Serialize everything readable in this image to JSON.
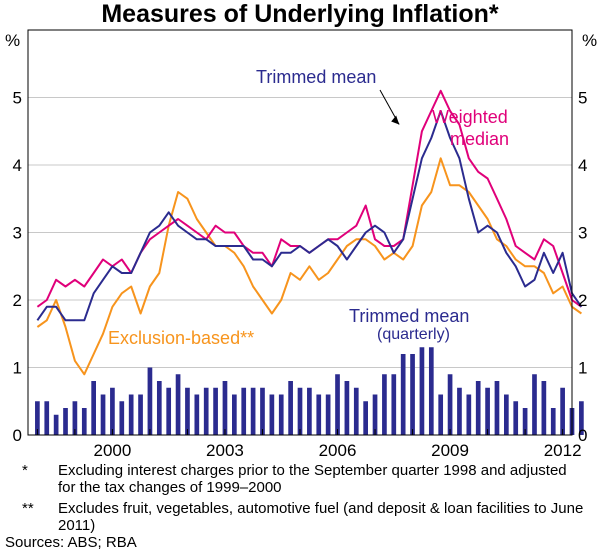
{
  "chart_data": {
    "type": "line",
    "title": "Measures of Underlying Inflation*",
    "ylabel_left": "%",
    "ylabel_right": "%",
    "ylim": [
      0,
      6
    ],
    "yticks": [
      "0",
      "1",
      "2",
      "3",
      "4",
      "5"
    ],
    "xlim": [
      1997.75,
      2012.25
    ],
    "xticks": [
      "2000",
      "2003",
      "2006",
      "2009",
      "2012"
    ],
    "xtick_values": [
      2000,
      2003,
      2006,
      2009,
      2012
    ],
    "x_start": 1998.0,
    "x_step": 0.25,
    "series": [
      {
        "name": "Weighted median",
        "label": "Weighted",
        "label2": "median",
        "color": "#e0007a",
        "values": [
          1.9,
          2.0,
          2.3,
          2.2,
          2.3,
          2.2,
          2.4,
          2.6,
          2.5,
          2.6,
          2.4,
          2.7,
          2.9,
          3.0,
          3.1,
          3.2,
          3.1,
          3.0,
          2.9,
          3.1,
          3.0,
          3.0,
          2.8,
          2.7,
          2.7,
          2.5,
          2.9,
          2.8,
          2.8,
          2.7,
          2.8,
          2.9,
          2.9,
          3.0,
          3.1,
          3.4,
          2.9,
          2.8,
          2.8,
          2.9,
          3.7,
          4.5,
          4.8,
          5.1,
          4.8,
          4.6,
          4.1,
          3.9,
          3.8,
          3.5,
          3.2,
          2.8,
          2.7,
          2.6,
          2.9,
          2.8,
          2.4,
          2.0,
          1.9
        ]
      },
      {
        "name": "Trimmed mean",
        "label": "Trimmed mean",
        "color": "#2b2b8f",
        "values": [
          1.7,
          1.9,
          1.9,
          1.7,
          1.7,
          1.7,
          2.1,
          2.3,
          2.5,
          2.4,
          2.4,
          2.7,
          3.0,
          3.1,
          3.3,
          3.1,
          3.0,
          2.9,
          2.9,
          2.8,
          2.8,
          2.8,
          2.8,
          2.6,
          2.6,
          2.5,
          2.7,
          2.7,
          2.8,
          2.7,
          2.8,
          2.9,
          2.8,
          2.6,
          2.8,
          3.0,
          3.1,
          3.0,
          2.7,
          2.9,
          3.5,
          4.1,
          4.4,
          4.8,
          4.4,
          4.1,
          3.5,
          3.0,
          3.1,
          3.0,
          2.7,
          2.5,
          2.2,
          2.3,
          2.7,
          2.4,
          2.7,
          2.1,
          1.9
        ]
      },
      {
        "name": "Exclusion-based**",
        "label": "Exclusion-based**",
        "color": "#f7941d",
        "values": [
          1.6,
          1.7,
          2.0,
          1.6,
          1.1,
          0.9,
          1.2,
          1.5,
          1.9,
          2.1,
          2.2,
          1.8,
          2.2,
          2.4,
          3.1,
          3.6,
          3.5,
          3.2,
          3.0,
          2.8,
          2.8,
          2.7,
          2.5,
          2.2,
          2.0,
          1.8,
          2.0,
          2.4,
          2.3,
          2.5,
          2.3,
          2.4,
          2.6,
          2.8,
          2.9,
          2.9,
          2.8,
          2.6,
          2.7,
          2.6,
          2.8,
          3.4,
          3.6,
          4.1,
          3.7,
          3.7,
          3.6,
          3.4,
          3.2,
          2.9,
          2.8,
          2.6,
          2.5,
          2.5,
          2.4,
          2.1,
          2.2,
          1.9,
          1.8
        ]
      }
    ],
    "bars": {
      "name": "Trimmed mean (quarterly)",
      "label": "Trimmed mean",
      "label2": "(quarterly)",
      "color": "#2b2b8f",
      "values": [
        0.5,
        0.5,
        0.3,
        0.4,
        0.5,
        0.4,
        0.8,
        0.6,
        0.7,
        0.5,
        0.6,
        0.6,
        1.0,
        0.8,
        0.7,
        0.9,
        0.7,
        0.6,
        0.7,
        0.7,
        0.8,
        0.6,
        0.7,
        0.7,
        0.7,
        0.6,
        0.6,
        0.8,
        0.7,
        0.7,
        0.6,
        0.6,
        0.9,
        0.8,
        0.7,
        0.5,
        0.6,
        0.9,
        0.9,
        1.2,
        1.2,
        1.3,
        1.3,
        0.6,
        0.9,
        0.7,
        0.6,
        0.8,
        0.7,
        0.8,
        0.6,
        0.5,
        0.4,
        0.9,
        0.8,
        0.4,
        0.7,
        0.4,
        0.5
      ]
    }
  },
  "notes": [
    {
      "mark": "*",
      "text": "Excluding interest charges prior to the September quarter 1998 and adjusted for the tax changes of 1999–2000"
    },
    {
      "mark": "**",
      "text": "Excludes fruit, vegetables, automotive fuel (and deposit & loan facilities to June 2011)"
    }
  ],
  "sources": "Sources: ABS; RBA"
}
